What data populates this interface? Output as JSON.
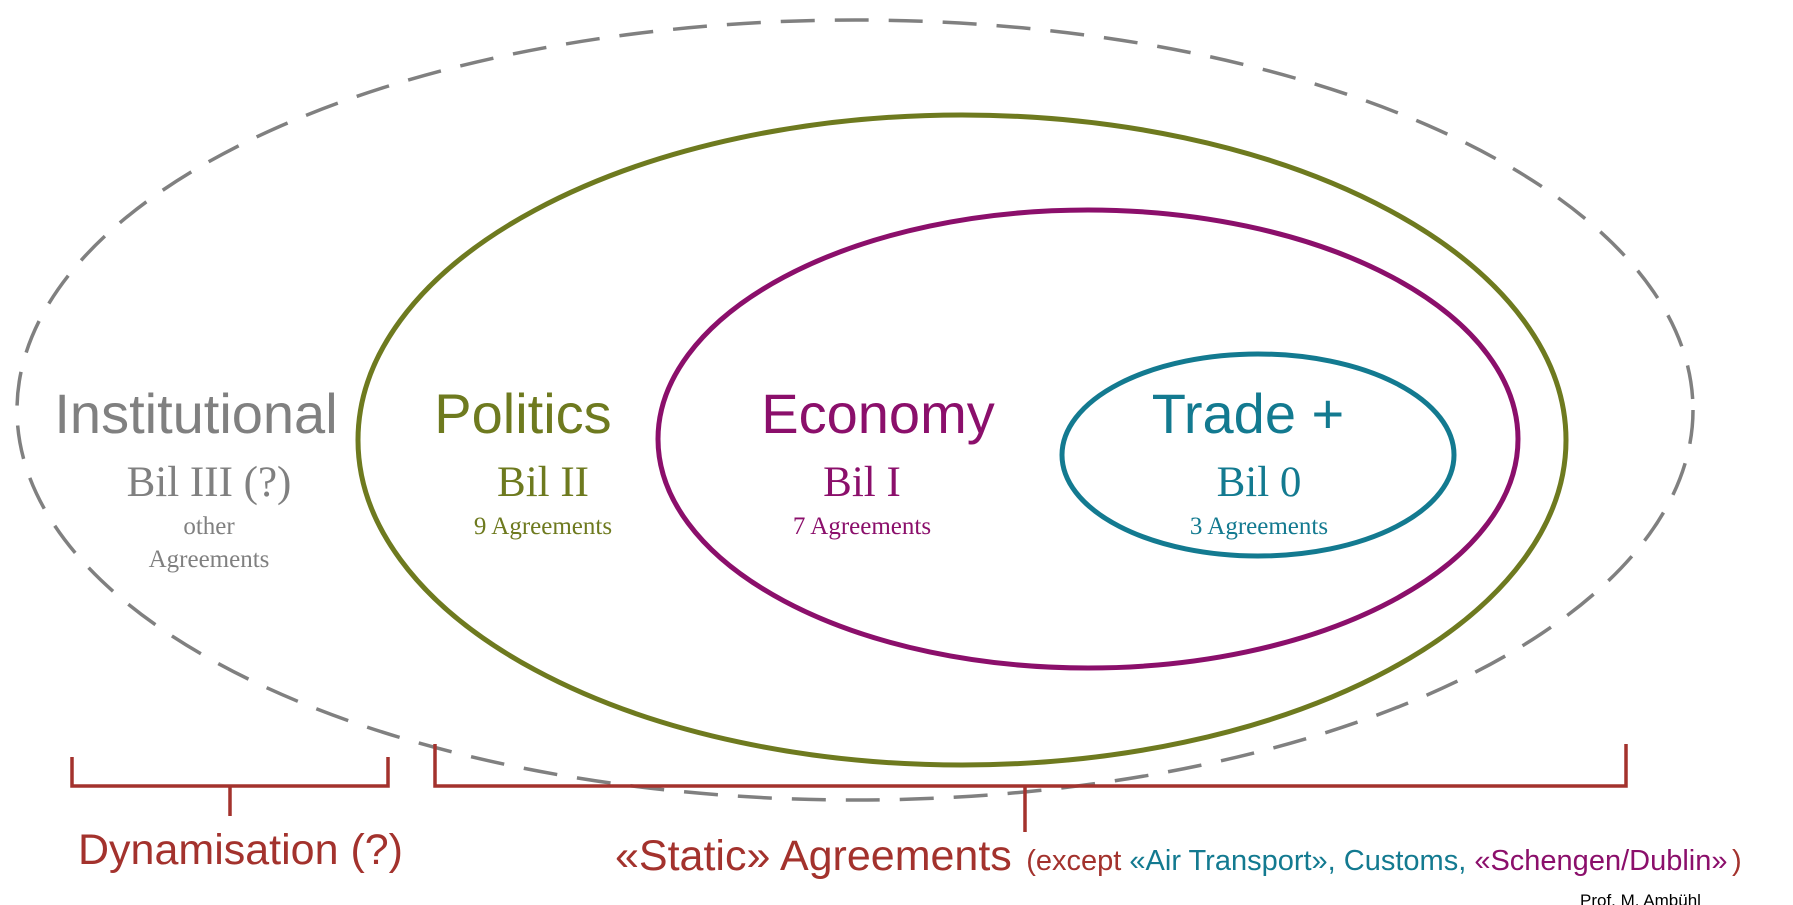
{
  "colors": {
    "institutional": "#808080",
    "politics": "#6e7a1f",
    "economy": "#8b0f6b",
    "trade": "#137a90",
    "bracket": "#a3322d",
    "credit": "#000000"
  },
  "institutional": {
    "title": "Institutional",
    "bil": "Bil III (?)",
    "agreements_line1": "other",
    "agreements_line2": "Agreements"
  },
  "politics": {
    "title": "Politics",
    "bil": "Bil II",
    "agreements": "9 Agreements"
  },
  "economy": {
    "title": "Economy",
    "bil": "Bil I",
    "agreements": "7 Agreements"
  },
  "trade": {
    "title": "Trade +",
    "bil": "Bil 0",
    "agreements": "3 Agreements"
  },
  "brackets": {
    "dynamisation_label": "Dynamisation (?)",
    "static_label": "«Static» Agreements",
    "except_open": "(except ",
    "except_air": "«Air Transport», Customs, ",
    "except_schengen": "«Schengen/Dublin»",
    "except_close": ")"
  },
  "credit": "Prof. M. Ambühl"
}
